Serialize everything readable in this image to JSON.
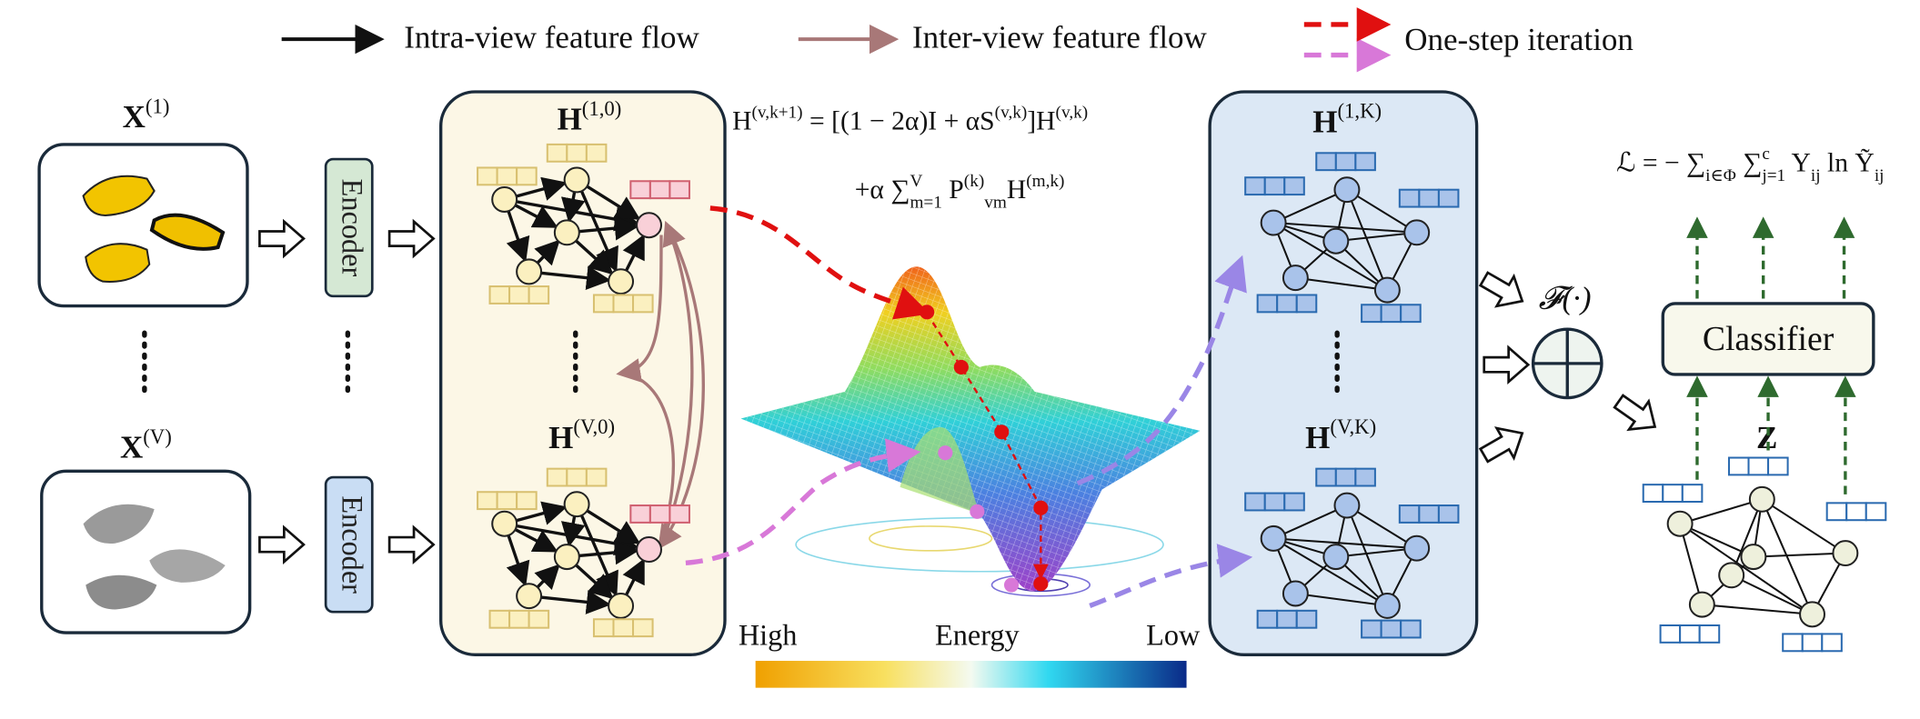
{
  "legend": [
    {
      "label": "Intra-view feature flow"
    },
    {
      "label": "Inter-view feature flow"
    },
    {
      "label": "One-step iteration"
    }
  ],
  "inputs": [
    [
      {
        "text": "X"
      },
      {
        "sup": "(1)"
      }
    ],
    [
      {
        "text": "X"
      },
      {
        "sup": "(V)"
      }
    ]
  ],
  "encoders": [
    "Encoder",
    "Encoder"
  ],
  "input_graphs": [
    [
      {
        "text": "H"
      },
      {
        "sup": "(1,0)"
      }
    ],
    [
      {
        "text": "H"
      },
      {
        "sup": "(V,0)"
      }
    ]
  ],
  "update_equation": {
    "line1": [
      {
        "text": "H"
      },
      {
        "sup": "(v,k+1)"
      },
      {
        "text": " = [(1 − 2α)I + αS"
      },
      {
        "sup": "(v,k)"
      },
      {
        "text": "]H"
      },
      {
        "sup": "(v,k)"
      }
    ],
    "line2": [
      {
        "text": "+α ∑"
      },
      {
        "sub": "m=1"
      },
      {
        "sup": "V"
      },
      {
        "text": " P"
      },
      {
        "sup": "(k)"
      },
      {
        "sub": "vm"
      },
      {
        "text": "H"
      },
      {
        "sup": "(m,k)"
      }
    ]
  },
  "energy_bar": {
    "high": "High",
    "title": "Energy",
    "low": "Low"
  },
  "output_graphs": [
    [
      {
        "text": "H"
      },
      {
        "sup": "(1,K)"
      }
    ],
    [
      {
        "text": "H"
      },
      {
        "sup": "(V,K)"
      }
    ]
  ],
  "fusion": "𝓕(·)",
  "classifier": "Classifier",
  "fused_representation": "Z",
  "loss": [
    {
      "text": "ℒ = − ∑"
    },
    {
      "sub": "i∈Φ"
    },
    {
      "text": " ∑"
    },
    {
      "sub": "j=1"
    },
    {
      "sup": "c"
    },
    {
      "text": " Y"
    },
    {
      "sub": "ij"
    },
    {
      "text": " ln Ỹ"
    },
    {
      "sub": "ij"
    }
  ]
}
